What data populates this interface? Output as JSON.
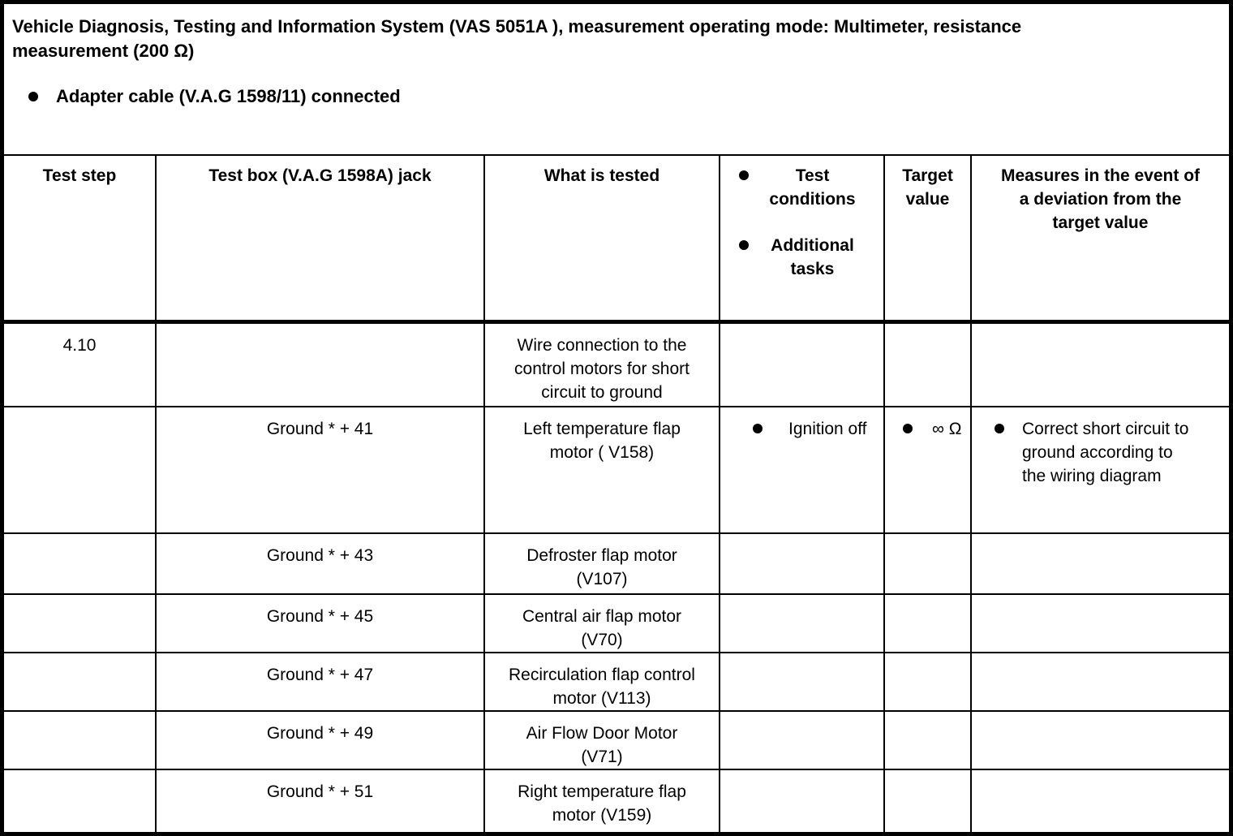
{
  "colors": {
    "text": "#000000",
    "background": "#ffffff",
    "border": "#000000"
  },
  "doc": {
    "title_lines": [
      "Vehicle Diagnosis, Testing and Information System (VAS 5051A ), measurement operating mode: Multimeter, resistance",
      "measurement (200 Ω)"
    ],
    "notes": [
      "Adapter cable (V.A.G 1598/11) connected"
    ]
  },
  "table": {
    "headers": {
      "test_step": "Test step",
      "jack": "Test box (V.A.G 1598A) jack",
      "tested": "What is tested",
      "conditions": [
        "Test conditions",
        "Additional tasks"
      ],
      "target": "Target value",
      "measures": "Measures in the event of a deviation from the target value"
    },
    "rows": [
      {
        "test_step": "4.10",
        "jack": "",
        "tested": "Wire connection to the control motors for short circuit to ground",
        "conditions": "",
        "target": "",
        "measures": ""
      },
      {
        "test_step": "",
        "jack": "Ground * + 41",
        "tested": "Left temperature flap motor ( V158)",
        "conditions": "Ignition off",
        "target": "∞ Ω",
        "measures": "Correct short circuit to ground according to the wiring diagram"
      },
      {
        "test_step": "",
        "jack": "Ground * + 43",
        "tested": "Defroster flap motor (V107)",
        "conditions": "",
        "target": "",
        "measures": ""
      },
      {
        "test_step": "",
        "jack": "Ground * + 45",
        "tested": "Central air flap motor (V70)",
        "conditions": "",
        "target": "",
        "measures": ""
      },
      {
        "test_step": "",
        "jack": "Ground * + 47",
        "tested": "Recirculation flap control motor (V113)",
        "conditions": "",
        "target": "",
        "measures": ""
      },
      {
        "test_step": "",
        "jack": "Ground * + 49",
        "tested": "Air Flow Door Motor (V71)",
        "conditions": "",
        "target": "",
        "measures": ""
      },
      {
        "test_step": "",
        "jack": "Ground * + 51",
        "tested": "Right temperature flap motor (V159)",
        "conditions": "",
        "target": "",
        "measures": ""
      }
    ]
  }
}
